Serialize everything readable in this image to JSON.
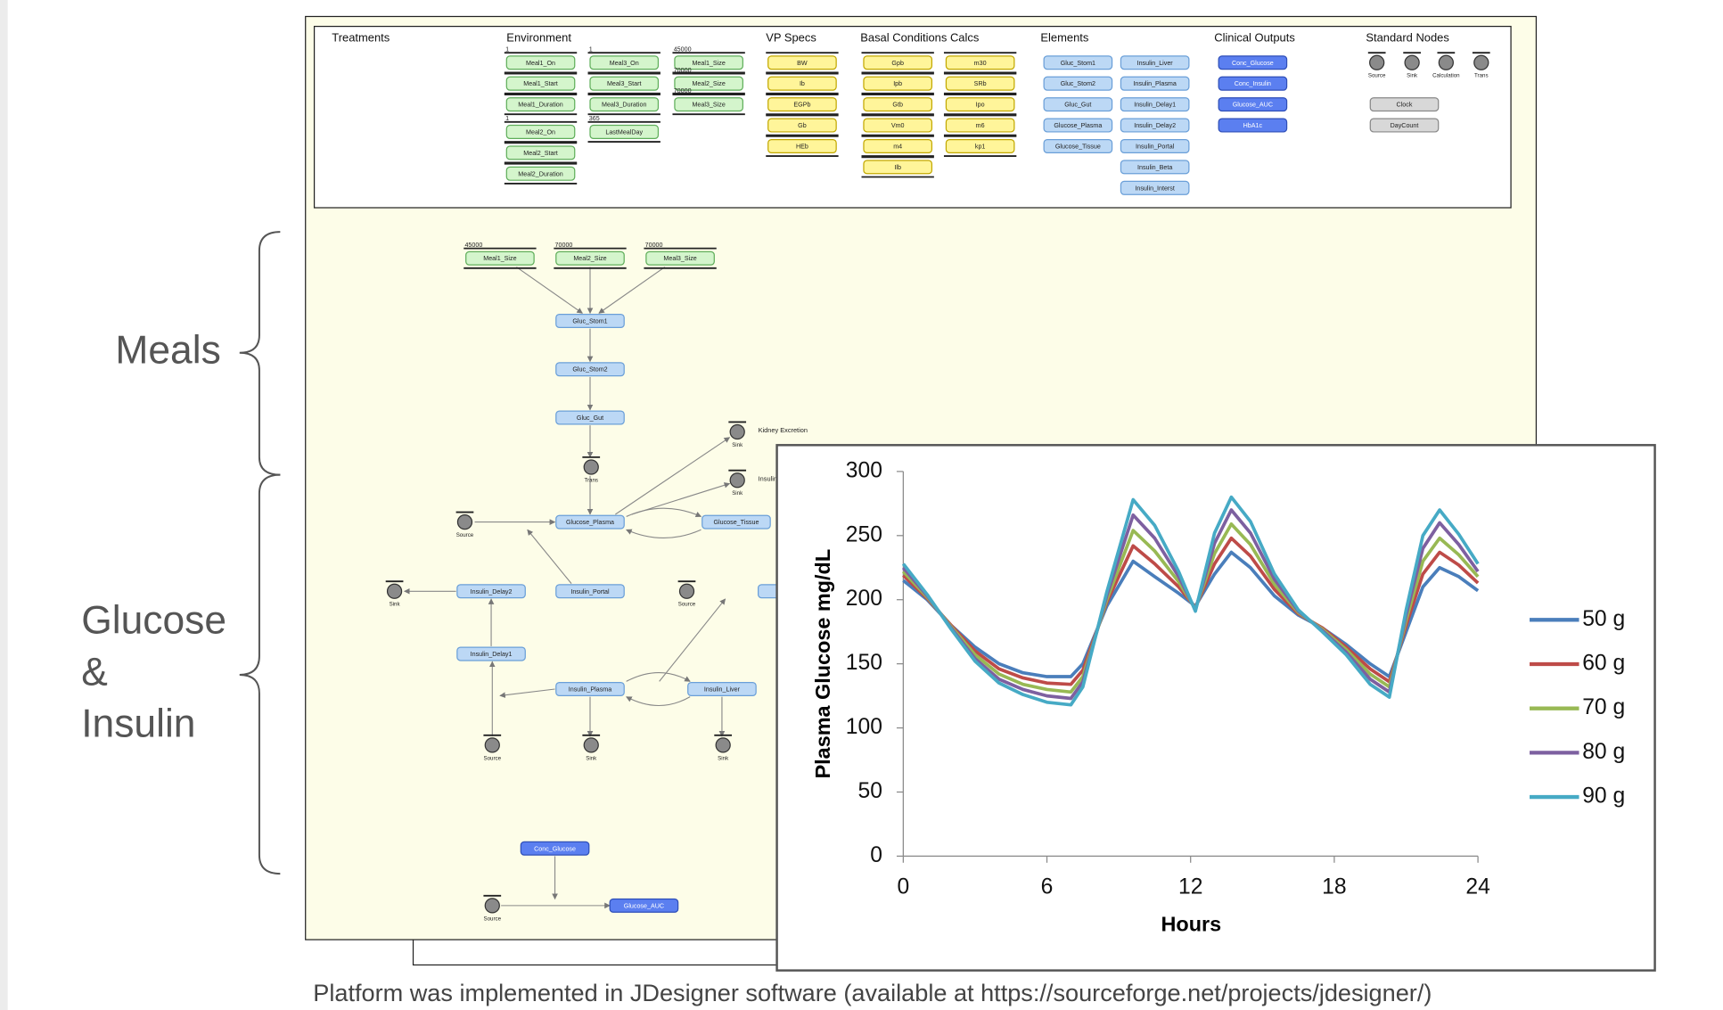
{
  "labels": {
    "meals": "Meals",
    "glucose_insulin": [
      "Glucose",
      "&",
      "Insulin"
    ]
  },
  "palette": {
    "headers": [
      "Treatments",
      "Environment",
      "VP Specs",
      "Basal Conditions Calcs",
      "Elements",
      "Clinical Outputs",
      "Standard Nodes"
    ],
    "columns": [
      {
        "nodes": [
          {
            "label": "Meal1_On",
            "value": 1
          },
          {
            "label": "Meal1_Start"
          },
          {
            "label": "Meal1_Duration"
          },
          {
            "label": "Meal2_On",
            "value": 1
          },
          {
            "label": "Meal2_Start"
          },
          {
            "label": "Meal2_Duration"
          }
        ]
      },
      {
        "nodes": [
          {
            "label": "Meal3_On",
            "value": 1
          },
          {
            "label": "Meal3_Start"
          },
          {
            "label": "Meal3_Duration"
          },
          {
            "label": "LastMealDay",
            "value": 365
          }
        ]
      },
      {
        "nodes": [
          {
            "label": "Meal1_Size",
            "value": 45000
          },
          {
            "label": "Meal2_Size",
            "value": 70000
          },
          {
            "label": "Meal3_Size",
            "value": 70000
          }
        ]
      },
      {
        "nodes": [
          {
            "label": "BW"
          },
          {
            "label": "Ib"
          },
          {
            "label": "EGPb"
          },
          {
            "label": "Gb"
          },
          {
            "label": "HEb"
          }
        ]
      },
      {
        "nodes": [
          {
            "label": "Gpb"
          },
          {
            "label": "Ipb"
          },
          {
            "label": "Gtb"
          },
          {
            "label": "Vm0"
          },
          {
            "label": "m4"
          },
          {
            "label": "Ilb"
          }
        ]
      },
      {
        "nodes": [
          {
            "label": "m30"
          },
          {
            "label": "SRb"
          },
          {
            "label": "Ipo"
          },
          {
            "label": "m6"
          },
          {
            "label": "kp1"
          }
        ]
      },
      {
        "nodes": [
          {
            "label": "Gluc_Stom1"
          },
          {
            "label": "Gluc_Stom2"
          },
          {
            "label": "Gluc_Gut"
          },
          {
            "label": "Glucose_Plasma"
          },
          {
            "label": "Glucose_Tissue"
          }
        ]
      },
      {
        "nodes": [
          {
            "label": "Insulin_Liver"
          },
          {
            "label": "Insulin_Plasma"
          },
          {
            "label": "Insulin_Delay1"
          },
          {
            "label": "Insulin_Delay2"
          },
          {
            "label": "Insulin_Portal"
          },
          {
            "label": "Insulin_Beta"
          },
          {
            "label": "Insulin_Interst"
          }
        ]
      },
      {
        "nodes": [
          {
            "label": "Conc_Glucose"
          },
          {
            "label": "Conc_Insulin"
          },
          {
            "label": "Glucose_AUC"
          },
          {
            "label": "HbA1c"
          }
        ]
      },
      {
        "nodes": [
          {
            "label": "Clock"
          },
          {
            "label": "DayCount"
          }
        ]
      }
    ],
    "standard_nodes": [
      "Source",
      "Sink",
      "Calculation",
      "Trans"
    ]
  },
  "diagram": {
    "nodes": [
      {
        "label": "Meal1_Size",
        "value": 45000
      },
      {
        "label": "Meal2_Size",
        "value": 70000
      },
      {
        "label": "Meal3_Size",
        "value": 70000
      },
      {
        "label": "Gluc_Stom1"
      },
      {
        "label": "Gluc_Stom2"
      },
      {
        "label": "Gluc_Gut"
      },
      {
        "label": "Glucose_Plasma"
      },
      {
        "label": "Glucose_Tissue"
      },
      {
        "label": "Insulin_Delay2"
      },
      {
        "label": "Insulin_Portal"
      },
      {
        "label": "Insulin_Delay1"
      },
      {
        "label": "Insulin_Plasma"
      },
      {
        "label": "Insulin_Liver"
      },
      {
        "label": "Conc_Glucose"
      },
      {
        "label": "Glucose_AUC"
      }
    ],
    "circles": [
      "Trans",
      "Sink",
      "Sink",
      "Source",
      "Sink",
      "Source",
      "Source",
      "Sink",
      "Sink",
      "Source"
    ],
    "annotations": [
      "Kidney Excretion",
      "Insulin"
    ]
  },
  "chart_data": {
    "type": "line",
    "x_label": "Hours",
    "y_label": "Plasma Glucose mg/dL",
    "x": [
      0,
      1,
      2,
      3,
      4,
      5,
      6,
      7,
      7.5,
      8.5,
      9.6,
      10.5,
      11.5,
      12.2,
      13,
      13.7,
      14.5,
      15.5,
      16.5,
      17.5,
      18.5,
      19.5,
      20.3,
      21,
      21.7,
      22.4,
      23.2,
      24
    ],
    "series": [
      {
        "name": "50 g",
        "color": "#4a7ebb",
        "values": [
          215,
          200,
          180,
          163,
          150,
          143,
          140,
          140,
          150,
          195,
          230,
          218,
          205,
          195,
          220,
          237,
          225,
          203,
          188,
          178,
          165,
          150,
          140,
          175,
          210,
          225,
          218,
          207
        ]
      },
      {
        "name": "60 g",
        "color": "#be4b48",
        "values": [
          219,
          201,
          180,
          160,
          146,
          139,
          135,
          134,
          145,
          198,
          242,
          228,
          210,
          194,
          228,
          248,
          234,
          208,
          189,
          178,
          163,
          146,
          136,
          180,
          220,
          237,
          227,
          213
        ]
      },
      {
        "name": "70 g",
        "color": "#98b954",
        "values": [
          222,
          202,
          179,
          157,
          142,
          134,
          130,
          128,
          140,
          200,
          254,
          238,
          214,
          193,
          236,
          259,
          243,
          212,
          190,
          177,
          161,
          142,
          132,
          184,
          230,
          248,
          235,
          218
        ]
      },
      {
        "name": "80 g",
        "color": "#7d60a0",
        "values": [
          225,
          203,
          178,
          154,
          138,
          130,
          125,
          123,
          136,
          203,
          266,
          248,
          218,
          192,
          244,
          270,
          252,
          216,
          191,
          176,
          159,
          138,
          128,
          188,
          240,
          260,
          243,
          222
        ]
      },
      {
        "name": "90 g",
        "color": "#46aac5",
        "values": [
          228,
          204,
          177,
          152,
          135,
          126,
          120,
          118,
          132,
          206,
          278,
          258,
          222,
          191,
          252,
          280,
          261,
          220,
          192,
          175,
          157,
          134,
          124,
          192,
          250,
          270,
          251,
          228
        ]
      }
    ],
    "xlim": [
      0,
      24
    ],
    "xticks": [
      0,
      6,
      12,
      18,
      24
    ],
    "ylim": [
      0,
      300
    ],
    "yticks": [
      0,
      50,
      100,
      150,
      200,
      250,
      300
    ],
    "legend": "right"
  },
  "caption": "Platform was implemented in JDesigner software (available at https://sourceforge.net/projects/jdesigner/)"
}
